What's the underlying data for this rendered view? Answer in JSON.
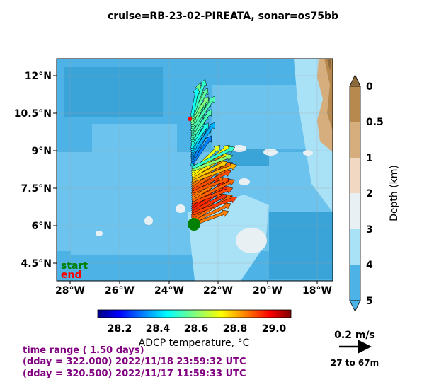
{
  "title": "cruise=RB-23-02-PIREATA,   sonar=os75bb",
  "map": {
    "lat_ticks": [
      "12°N",
      "10.5°N",
      "9°N",
      "7.5°N",
      "6°N",
      "4.5°N"
    ],
    "lon_ticks": [
      "28°W",
      "26°W",
      "24°W",
      "22°W",
      "20°W",
      "18°W"
    ],
    "start_label": "start",
    "end_label": "end"
  },
  "depth_colorbar": {
    "label": "Depth (km)",
    "ticks": [
      "0",
      "0.5",
      "1",
      "2",
      "3",
      "4",
      "5"
    ],
    "colors": [
      "#8c6a3c",
      "#b8894e",
      "#d6ae7e",
      "#f1d8c3",
      "#e9f0f4",
      "#a9e2f6",
      "#4db3e6"
    ]
  },
  "temp_colorbar": {
    "label": "ADCP temperature, °C",
    "ticks": [
      "28.2",
      "28.4",
      "28.6",
      "28.8",
      "29.0"
    ]
  },
  "scale": {
    "speed_label": "0.2 m/s",
    "depth_range": "27 to 67m"
  },
  "info": {
    "line1": "time range ( 1.50 days)",
    "line2": "(dday = 322.000) 2022/11/18 23:59:32 UTC",
    "line3": "(dday = 320.500) 2022/11/17 11:59:33 UTC"
  },
  "chart_data": {
    "type": "quiver",
    "title": "cruise=RB-23-02-PIREATA,   sonar=os75bb",
    "xlim": [
      -28.5,
      -17.3
    ],
    "ylim": [
      3.8,
      12.7
    ],
    "track": [
      {
        "lon": -23.0,
        "lat": 6.05,
        "temp": 28.85
      },
      {
        "lon": -23.0,
        "lat": 6.4,
        "temp": 28.9
      },
      {
        "lon": -23.0,
        "lat": 6.75,
        "temp": 28.95
      },
      {
        "lon": -23.0,
        "lat": 7.1,
        "temp": 28.85
      },
      {
        "lon": -23.0,
        "lat": 7.45,
        "temp": 28.9
      },
      {
        "lon": -23.0,
        "lat": 7.8,
        "temp": 28.8
      },
      {
        "lon": -23.0,
        "lat": 8.15,
        "temp": 28.7
      },
      {
        "lon": -23.0,
        "lat": 8.5,
        "temp": 28.35
      },
      {
        "lon": -23.0,
        "lat": 8.85,
        "temp": 28.4
      },
      {
        "lon": -23.0,
        "lat": 9.2,
        "temp": 28.5
      },
      {
        "lon": -23.0,
        "lat": 9.55,
        "temp": 28.55
      },
      {
        "lon": -23.0,
        "lat": 9.9,
        "temp": 28.55
      },
      {
        "lon": -23.0,
        "lat": 10.25,
        "temp": 28.6
      },
      {
        "lon": -23.0,
        "lat": 10.5,
        "temp": 28.45
      }
    ],
    "start": {
      "lon": -23.0,
      "lat": 6.05
    },
    "end": {
      "lon": -23.2,
      "lat": 10.4
    }
  }
}
